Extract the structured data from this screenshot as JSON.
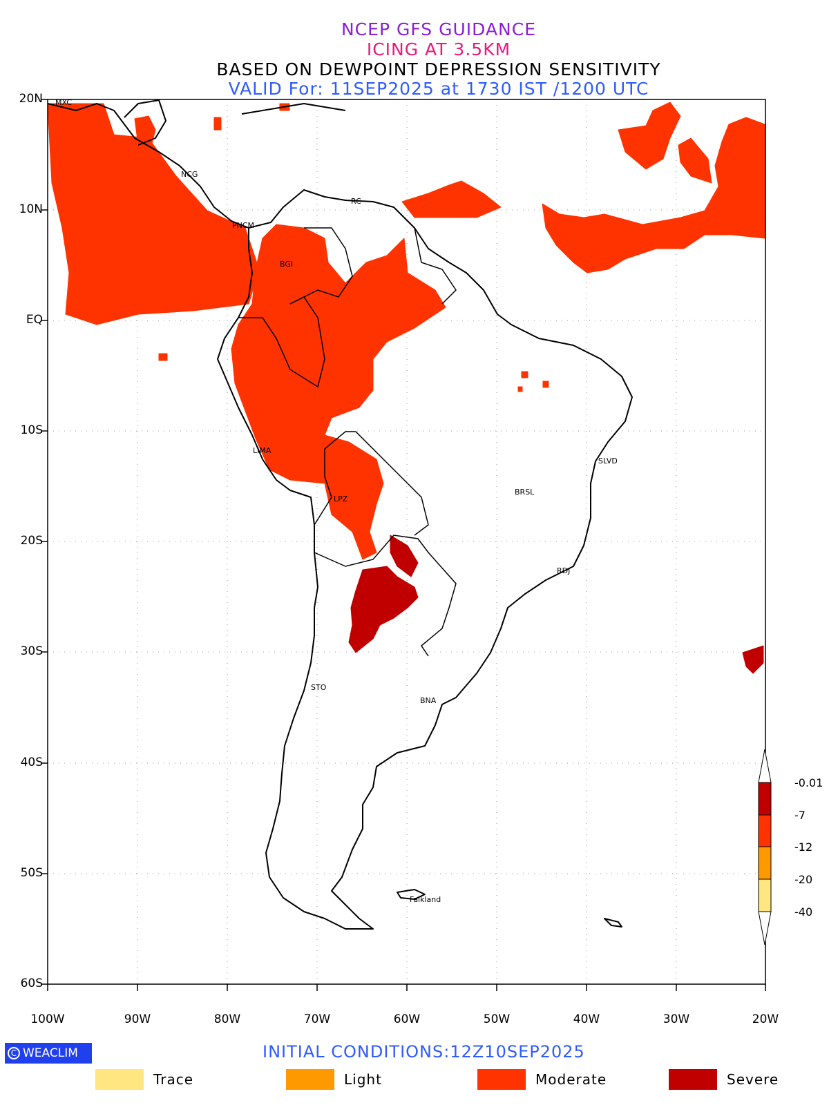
{
  "titles": {
    "line1": "NCEP GFS GUIDANCE",
    "line2": "ICING AT 3.5KM",
    "line3": "BASED ON DEWPOINT DEPRESSION SENSITIVITY",
    "line4": "VALID For: 11SEP2025 at 1730 IST /1200 UTC"
  },
  "axes": {
    "lat_labels": [
      "20N",
      "10N",
      "EQ",
      "10S",
      "20S",
      "30S",
      "40S",
      "50S",
      "60S"
    ],
    "lon_labels": [
      "100W",
      "90W",
      "80W",
      "70W",
      "60W",
      "50W",
      "40W",
      "30W",
      "20W"
    ]
  },
  "stations": [
    "MXC",
    "NCG",
    "RC",
    "PNCM",
    "BGI",
    "LIMA",
    "LPZ",
    "BRSL",
    "SLVD",
    "RDJ",
    "STO",
    "BNA",
    "Falkland"
  ],
  "colorbar": {
    "labels": [
      "-0.01",
      "-7",
      "-12",
      "-20",
      "-40"
    ],
    "colors": [
      "#c00000",
      "#ff3300",
      "#ff9900",
      "#ffe680"
    ]
  },
  "legend": [
    {
      "label": "Trace",
      "color": "#ffe680"
    },
    {
      "label": "Light",
      "color": "#ff9900"
    },
    {
      "label": "Moderate",
      "color": "#ff3300"
    },
    {
      "label": "Severe",
      "color": "#c00000"
    }
  ],
  "initial_conditions": "INITIAL CONDITIONS:12Z10SEP2025",
  "brand": "WEACLIM",
  "brand_symbol": "C"
}
